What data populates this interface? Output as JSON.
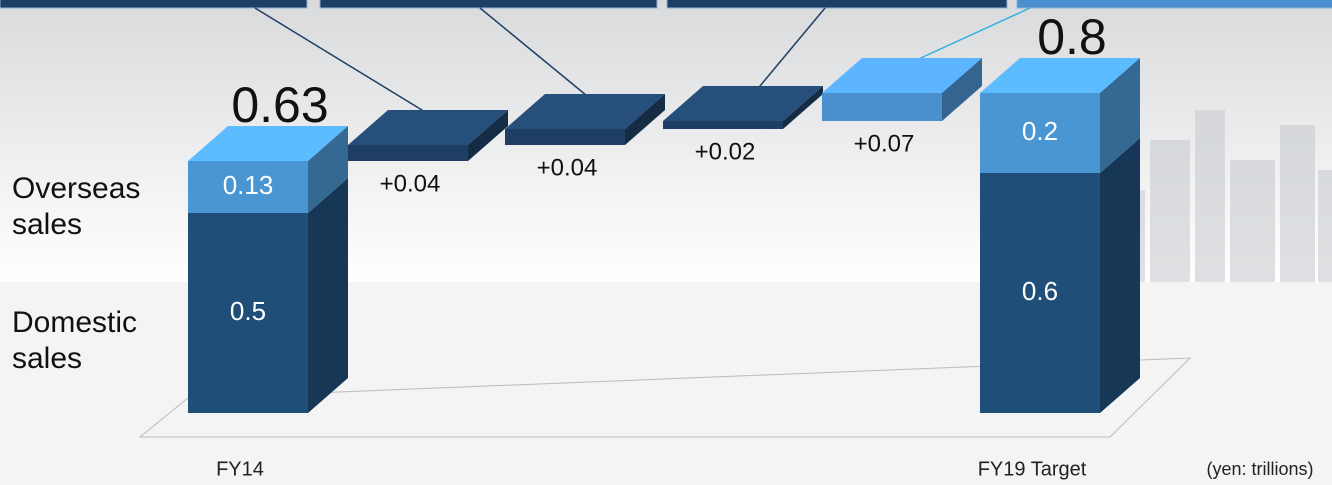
{
  "chart_data": {
    "type": "waterfall",
    "categories": [
      "FY14",
      null,
      null,
      null,
      null,
      "FY19 Target"
    ],
    "series": [
      {
        "name": "Domestic sales",
        "color": "#1f4e79",
        "values": [
          0.5,
          null,
          null,
          null,
          null,
          0.6
        ]
      },
      {
        "name": "Overseas sales",
        "color": "#4a96d2",
        "values": [
          0.13,
          null,
          null,
          null,
          null,
          0.2
        ]
      }
    ],
    "totals": [
      0.63,
      null,
      null,
      null,
      null,
      0.8
    ],
    "steps": {
      "values": [
        0.04,
        0.04,
        0.02,
        0.07
      ],
      "value_labels": [
        "+0.04",
        "+0.04",
        "+0.02",
        "+0.07"
      ],
      "colors": [
        "#1e3f63",
        "#1e3f63",
        "#1e3f63",
        "#4a90cf"
      ]
    },
    "unit_note": "(yen: trillions)"
  }
}
